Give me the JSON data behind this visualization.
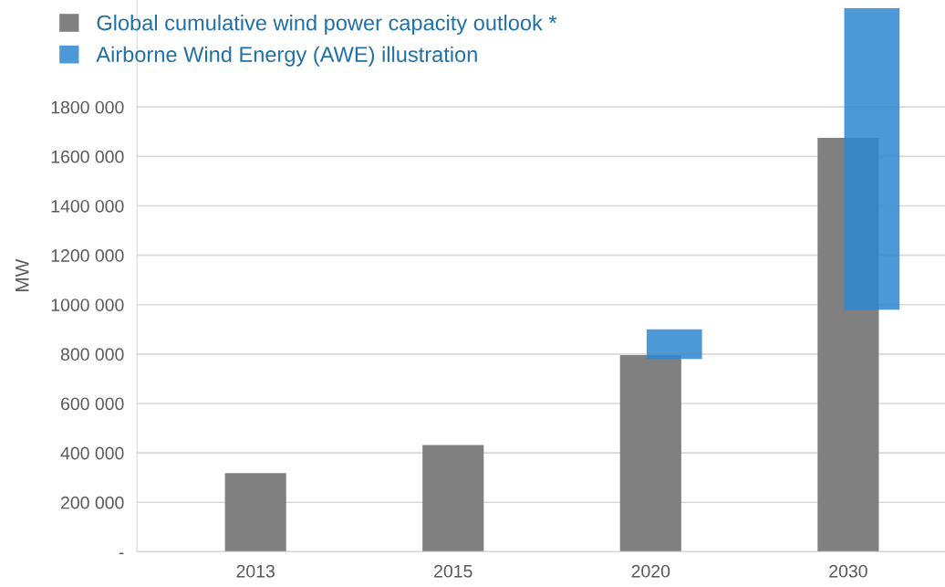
{
  "chart_data": {
    "type": "bar",
    "ylabel": "MW",
    "categories": [
      "2013",
      "2015",
      "2020",
      "2030"
    ],
    "series": [
      {
        "name": "Global cumulative wind power capacity outlook *",
        "color": "#808080",
        "values": [
          318000,
          432000,
          796000,
          1675000
        ]
      },
      {
        "name": "Airborne Wind Energy (AWE) illustration",
        "color": "#2e86cf",
        "values": [
          null,
          null,
          120000,
          1220000
        ],
        "base": [
          null,
          null,
          780000,
          980000
        ]
      }
    ],
    "ylim": [
      0,
      2233000
    ],
    "yticks": [
      {
        "value": 0,
        "label": "-"
      },
      {
        "value": 200000,
        "label": "200 000"
      },
      {
        "value": 400000,
        "label": "400 000"
      },
      {
        "value": 600000,
        "label": "600 000"
      },
      {
        "value": 800000,
        "label": "800 000"
      },
      {
        "value": 1000000,
        "label": "1000 000"
      },
      {
        "value": 1200000,
        "label": "1200 000"
      },
      {
        "value": 1400000,
        "label": "1400 000"
      },
      {
        "value": 1600000,
        "label": "1600 000"
      },
      {
        "value": 1800000,
        "label": "1800 000"
      }
    ],
    "grid": "y",
    "legend": "top left"
  }
}
